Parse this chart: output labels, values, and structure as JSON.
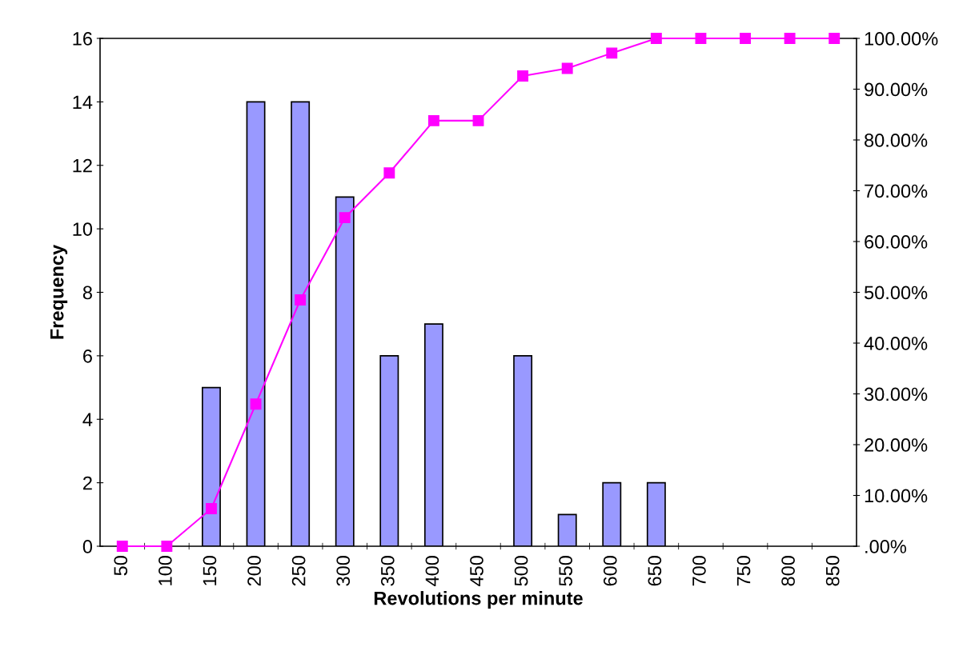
{
  "chart_data": {
    "type": "bar",
    "xlabel": "Revolutions per minute",
    "ylabel": "Frequency",
    "categories": [
      "50",
      "100",
      "150",
      "200",
      "250",
      "300",
      "350",
      "400",
      "450",
      "500",
      "550",
      "600",
      "650",
      "700",
      "750",
      "800",
      "850"
    ],
    "series": [
      {
        "color": "#9999ff",
        "values": [
          0,
          0,
          5,
          14,
          14,
          11,
          6,
          7,
          0,
          6,
          1,
          2,
          2,
          0,
          0,
          0,
          0
        ]
      },
      {
        "type": "line",
        "axis": "y2",
        "color": "#ff00ff",
        "marker": "square",
        "line_style": "solid",
        "values": [
          0,
          0,
          7.4,
          28,
          48.5,
          64.7,
          73.5,
          83.8,
          83.8,
          92.6,
          94.1,
          97.1,
          100,
          100,
          100,
          100,
          100
        ]
      }
    ],
    "ylim": [
      0,
      16
    ],
    "yticks": [
      0,
      2,
      4,
      6,
      8,
      10,
      12,
      14,
      16
    ],
    "y2lim": [
      0,
      100
    ],
    "y2ticks": [
      {
        "value": 0,
        "label": ".00%"
      },
      {
        "value": 10,
        "label": "10.00%"
      },
      {
        "value": 20,
        "label": "20.00%"
      },
      {
        "value": 30,
        "label": "30.00%"
      },
      {
        "value": 40,
        "label": "40.00%"
      },
      {
        "value": 50,
        "label": "50.00%"
      },
      {
        "value": 60,
        "label": "60.00%"
      },
      {
        "value": 70,
        "label": "70.00%"
      },
      {
        "value": 80,
        "label": "80.00%"
      },
      {
        "value": 90,
        "label": "90.00%"
      },
      {
        "value": 100,
        "label": "100.00%"
      }
    ],
    "grid": false,
    "legend": false
  }
}
